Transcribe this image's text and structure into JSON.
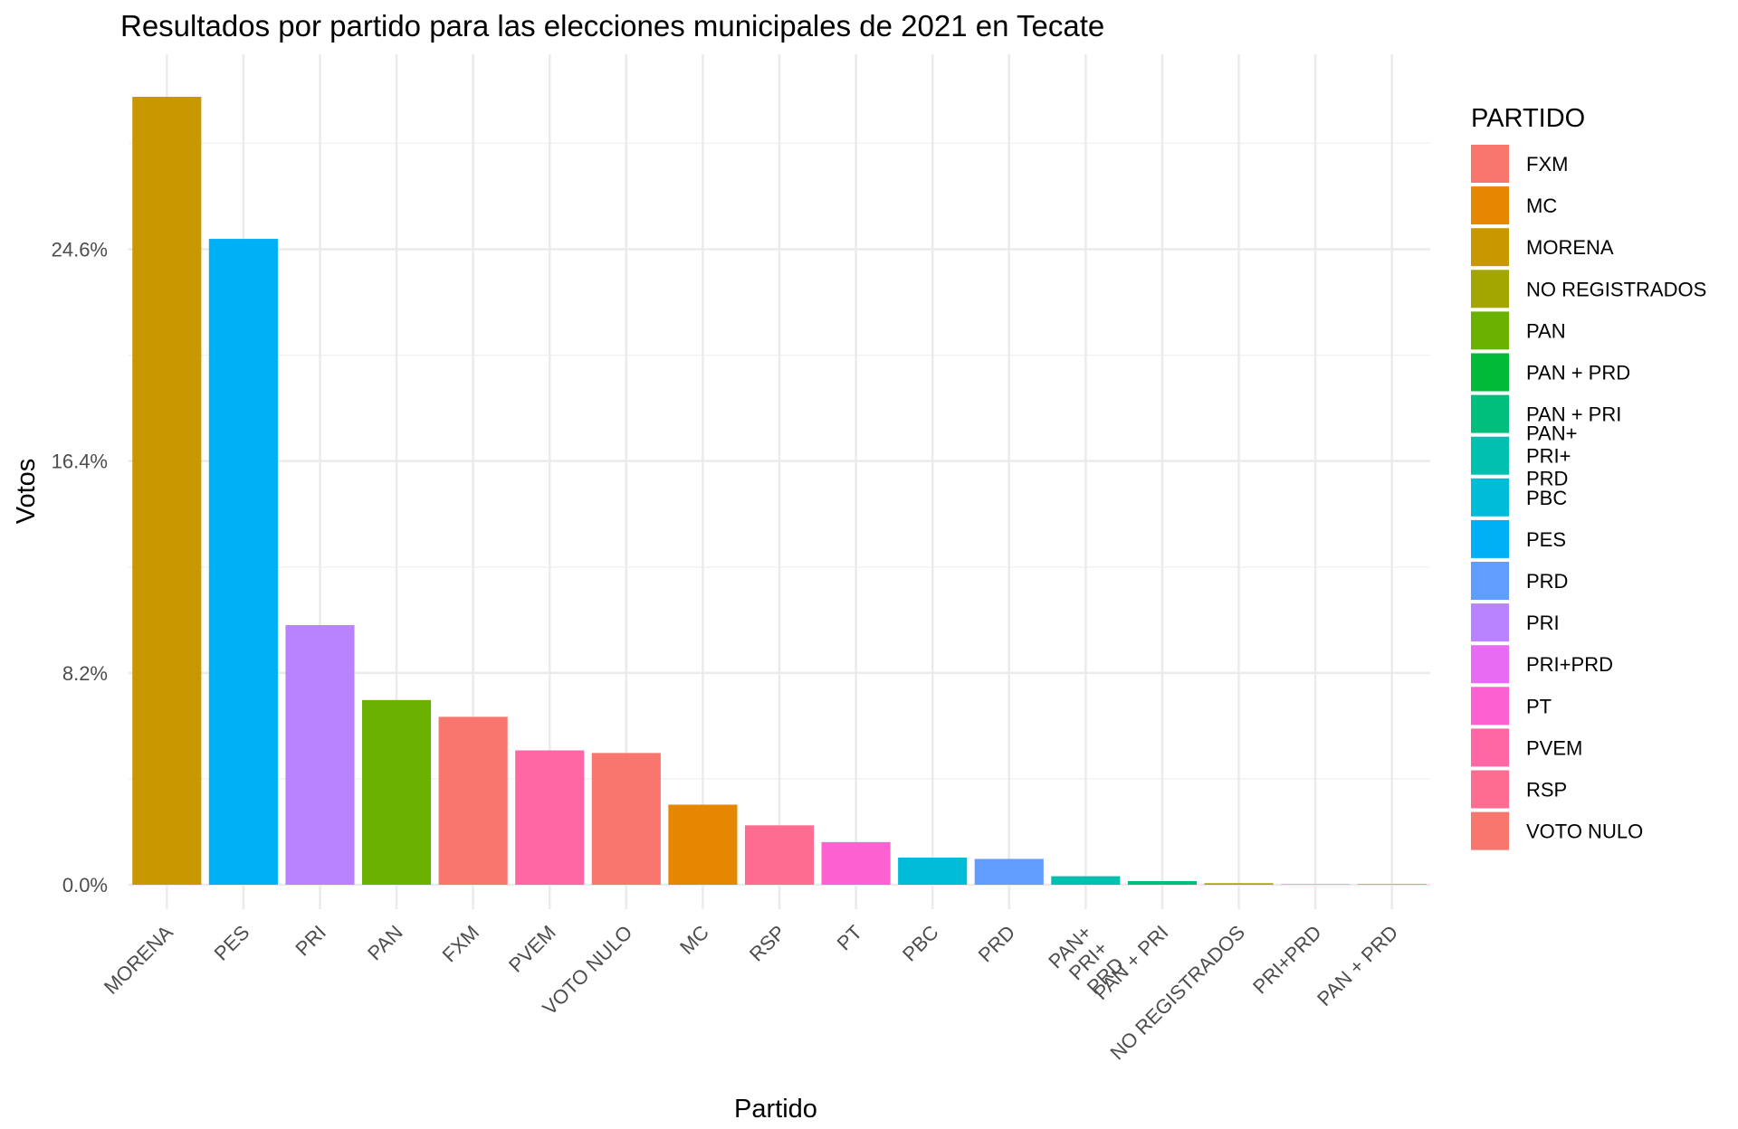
{
  "chart_data": {
    "type": "bar",
    "title": "Resultados por partido para las elecciones municipales de 2021 en Tecate",
    "xlabel": "Partido",
    "ylabel": "Votos",
    "ylim": [
      0,
      30.5
    ],
    "y_ticks": [
      0,
      8.2,
      16.4,
      24.6
    ],
    "y_tick_labels": [
      "0.0%",
      "8.2%",
      "16.4%",
      "24.6%"
    ],
    "grid": true,
    "legend_position": "right",
    "legend_title": "PARTIDO",
    "categories": [
      "MORENA",
      "PES",
      "PRI",
      "PAN",
      "FXM",
      "PVEM",
      "VOTO NULO",
      "MC",
      "RSP",
      "PT",
      "PBC",
      "PRD",
      "PAN+\nPRI+\nPRD",
      "PAN + PRI",
      "NO REGISTRADOS",
      "PRI+PRD",
      "PAN + PRD"
    ],
    "values": [
      30.5,
      25.0,
      10.05,
      7.15,
      6.5,
      5.2,
      5.1,
      3.1,
      2.3,
      1.65,
      1.05,
      1.0,
      0.33,
      0.14,
      0.06,
      0.01,
      0.01
    ],
    "colors": {
      "FXM": "#F8766D",
      "MC": "#E58700",
      "MORENA": "#C99800",
      "NO REGISTRADOS": "#A3A500",
      "PAN": "#6BB100",
      "PAN + PRD": "#00BA38",
      "PAN + PRI": "#00BF7D",
      "PAN+\nPRI+\nPRD": "#00C0AF",
      "PBC": "#00BCD8",
      "PES": "#00B0F6",
      "PRD": "#619CFF",
      "PRI": "#B983FF",
      "PRI+PRD": "#E76BF3",
      "PT": "#FD61D1",
      "PVEM": "#FF67A4",
      "RSP": "#FF6C91",
      "VOTO NULO": "#F8766D"
    },
    "legend_entries": [
      {
        "label": "FXM",
        "color": "#F8766D"
      },
      {
        "label": "MC",
        "color": "#E58700"
      },
      {
        "label": "MORENA",
        "color": "#C99800"
      },
      {
        "label": "NO REGISTRADOS",
        "color": "#A3A500"
      },
      {
        "label": "PAN",
        "color": "#6BB100"
      },
      {
        "label": "PAN + PRD",
        "color": "#00BA38"
      },
      {
        "label": "PAN + PRI",
        "color": "#00BF7D"
      },
      {
        "label": "PAN+\nPRI+\nPRD",
        "color": "#00C0AF"
      },
      {
        "label": "PBC",
        "color": "#00BCD8"
      },
      {
        "label": "PES",
        "color": "#00B0F6"
      },
      {
        "label": "PRD",
        "color": "#619CFF"
      },
      {
        "label": "PRI",
        "color": "#B983FF"
      },
      {
        "label": "PRI+PRD",
        "color": "#E76BF3"
      },
      {
        "label": "PT",
        "color": "#FD61D1"
      },
      {
        "label": "PVEM",
        "color": "#FF67A4"
      },
      {
        "label": "RSP",
        "color": "#FF6C91"
      },
      {
        "label": "VOTO NULO",
        "color": "#F8766D"
      }
    ]
  }
}
